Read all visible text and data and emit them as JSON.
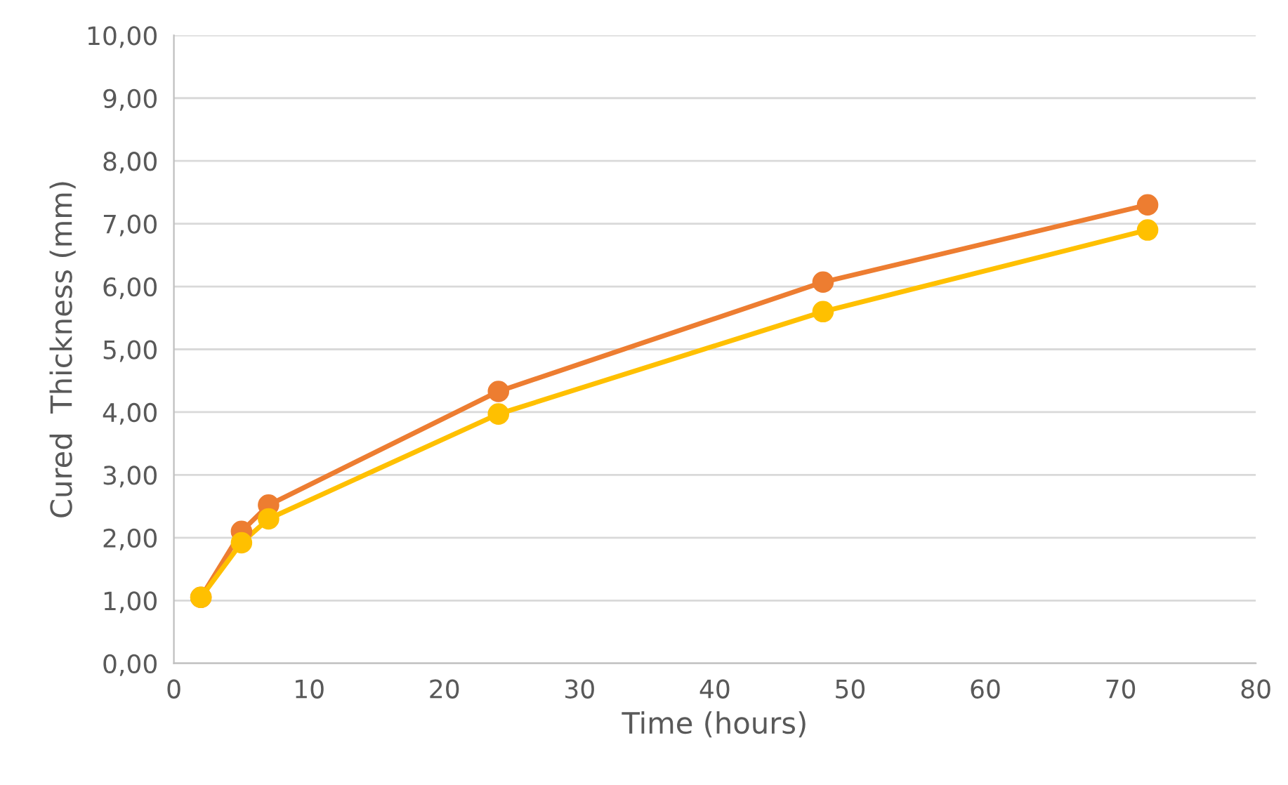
{
  "chart_data": {
    "type": "line",
    "xlabel": "Time (hours)",
    "ylabel": "Cured  Thickness (mm)",
    "x": [
      2,
      5,
      7,
      24,
      48,
      72
    ],
    "series": [
      {
        "color": "#ed7d31",
        "values": [
          1.05,
          2.1,
          2.52,
          4.33,
          6.07,
          7.3
        ]
      },
      {
        "color": "#ffc000",
        "values": [
          1.05,
          1.92,
          2.3,
          3.97,
          5.6,
          6.9
        ]
      }
    ],
    "xlim": [
      0,
      80
    ],
    "xticks": [
      0,
      10,
      20,
      30,
      40,
      50,
      60,
      70,
      80
    ],
    "ylim": [
      0,
      10
    ],
    "yticks": [
      {
        "value": 0,
        "label": "0,00"
      },
      {
        "value": 1,
        "label": "1,00"
      },
      {
        "value": 2,
        "label": "2,00"
      },
      {
        "value": 3,
        "label": "3,00"
      },
      {
        "value": 4,
        "label": "4,00"
      },
      {
        "value": 5,
        "label": "5,00"
      },
      {
        "value": 6,
        "label": "6,00"
      },
      {
        "value": 7,
        "label": "7,00"
      },
      {
        "value": 8,
        "label": "8,00"
      },
      {
        "value": 9,
        "label": "9,00"
      },
      {
        "value": 10,
        "label": "10,00"
      }
    ],
    "grid": "y",
    "marker": "circle",
    "line_style": "solid"
  }
}
